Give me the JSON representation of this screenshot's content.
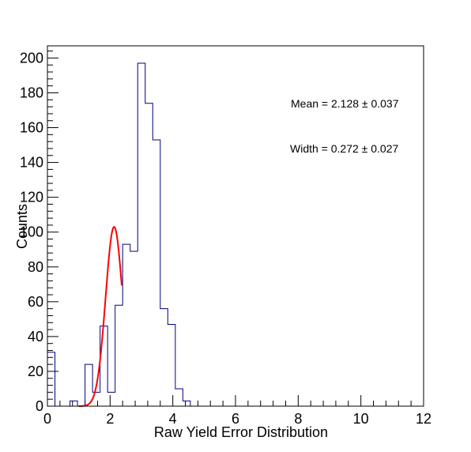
{
  "chart_data": {
    "type": "histogram",
    "title": "",
    "xlabel": "Raw Yield Error Distribution",
    "ylabel": "Counts",
    "xlim": [
      0,
      12
    ],
    "ylim": [
      0,
      207
    ],
    "x_ticks": [
      0,
      2,
      4,
      6,
      8,
      10,
      12
    ],
    "y_ticks": [
      0,
      20,
      40,
      60,
      80,
      100,
      120,
      140,
      160,
      180,
      200
    ],
    "grid": false,
    "bin_width": 0.24,
    "bins_start": 0,
    "values": [
      31,
      0,
      0,
      3,
      0,
      24,
      8,
      46,
      8,
      58,
      93,
      89,
      197,
      174,
      153,
      56,
      47,
      10,
      3,
      0,
      0,
      0,
      0,
      0,
      0,
      0,
      0,
      0,
      0,
      0,
      0,
      0,
      0,
      0,
      0,
      0,
      0,
      0,
      0,
      0,
      0,
      0,
      0,
      0,
      0,
      0,
      0,
      0,
      0,
      0
    ],
    "histogram_color": "#000080",
    "fit": {
      "type": "gaussian",
      "color": "#ff0000",
      "amplitude": 103,
      "mean": 2.128,
      "width": 0.272,
      "xrange": [
        1.0,
        2.37
      ]
    },
    "annotations": [
      {
        "text": "Mean = 2.128 ± 0.037"
      },
      {
        "text": "Width = 0.272 ± 0.027"
      }
    ]
  }
}
